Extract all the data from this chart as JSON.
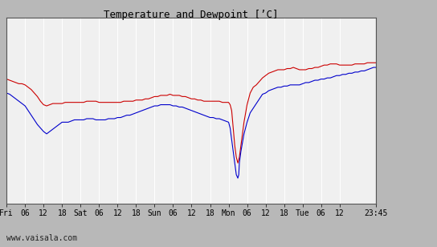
{
  "title": "Temperature and Dewpoint [’C]",
  "ylim": [
    -12,
    4
  ],
  "yticks": [
    -12,
    -10,
    -8,
    -6,
    -4,
    -2,
    0,
    2,
    4
  ],
  "watermark": "www.vaisala.com",
  "plot_bg_color": "#f0f0f0",
  "fig_bg_color": "#b8b8b8",
  "right_panel_color": "#c8c8c8",
  "grid_color": "#ffffff",
  "temp_color": "#cc0000",
  "dew_color": "#0000cc",
  "x_tick_labels": [
    "Fri",
    "06",
    "12",
    "18",
    "Sat",
    "06",
    "12",
    "18",
    "Sun",
    "06",
    "12",
    "18",
    "Mon",
    "06",
    "12",
    "18",
    "Tue",
    "06",
    "12",
    "23:45"
  ],
  "x_tick_positions": [
    0,
    6,
    12,
    18,
    24,
    30,
    36,
    42,
    48,
    54,
    60,
    66,
    72,
    78,
    84,
    90,
    96,
    102,
    108,
    119.75
  ],
  "total_hours": 119.75,
  "temp_data": [
    [
      0,
      -1.3
    ],
    [
      1,
      -1.4
    ],
    [
      2,
      -1.5
    ],
    [
      3,
      -1.6
    ],
    [
      4,
      -1.7
    ],
    [
      5,
      -1.7
    ],
    [
      6,
      -1.8
    ],
    [
      7,
      -2.0
    ],
    [
      8,
      -2.2
    ],
    [
      9,
      -2.5
    ],
    [
      10,
      -2.8
    ],
    [
      11,
      -3.2
    ],
    [
      12,
      -3.5
    ],
    [
      13,
      -3.6
    ],
    [
      14,
      -3.5
    ],
    [
      15,
      -3.4
    ],
    [
      16,
      -3.4
    ],
    [
      17,
      -3.4
    ],
    [
      18,
      -3.4
    ],
    [
      19,
      -3.3
    ],
    [
      20,
      -3.3
    ],
    [
      21,
      -3.3
    ],
    [
      22,
      -3.3
    ],
    [
      23,
      -3.3
    ],
    [
      24,
      -3.3
    ],
    [
      25,
      -3.3
    ],
    [
      26,
      -3.2
    ],
    [
      27,
      -3.2
    ],
    [
      28,
      -3.2
    ],
    [
      29,
      -3.2
    ],
    [
      30,
      -3.3
    ],
    [
      31,
      -3.3
    ],
    [
      32,
      -3.3
    ],
    [
      33,
      -3.3
    ],
    [
      34,
      -3.3
    ],
    [
      35,
      -3.3
    ],
    [
      36,
      -3.3
    ],
    [
      37,
      -3.3
    ],
    [
      38,
      -3.2
    ],
    [
      39,
      -3.2
    ],
    [
      40,
      -3.2
    ],
    [
      41,
      -3.2
    ],
    [
      42,
      -3.1
    ],
    [
      43,
      -3.1
    ],
    [
      44,
      -3.1
    ],
    [
      45,
      -3.0
    ],
    [
      46,
      -3.0
    ],
    [
      47,
      -2.9
    ],
    [
      48,
      -2.8
    ],
    [
      49,
      -2.8
    ],
    [
      50,
      -2.7
    ],
    [
      51,
      -2.7
    ],
    [
      52,
      -2.7
    ],
    [
      53,
      -2.6
    ],
    [
      54,
      -2.7
    ],
    [
      55,
      -2.7
    ],
    [
      56,
      -2.7
    ],
    [
      57,
      -2.8
    ],
    [
      58,
      -2.8
    ],
    [
      59,
      -2.9
    ],
    [
      60,
      -3.0
    ],
    [
      61,
      -3.0
    ],
    [
      62,
      -3.1
    ],
    [
      63,
      -3.1
    ],
    [
      64,
      -3.2
    ],
    [
      65,
      -3.2
    ],
    [
      66,
      -3.2
    ],
    [
      67,
      -3.2
    ],
    [
      68,
      -3.2
    ],
    [
      69,
      -3.2
    ],
    [
      70,
      -3.3
    ],
    [
      71,
      -3.3
    ],
    [
      72,
      -3.3
    ],
    [
      72.5,
      -3.5
    ],
    [
      73,
      -4.0
    ],
    [
      73.5,
      -5.5
    ],
    [
      74,
      -7.0
    ],
    [
      74.5,
      -8.0
    ],
    [
      75,
      -8.5
    ],
    [
      75.5,
      -8.0
    ],
    [
      76,
      -7.0
    ],
    [
      77,
      -5.0
    ],
    [
      78,
      -3.5
    ],
    [
      79,
      -2.5
    ],
    [
      80,
      -2.0
    ],
    [
      81,
      -1.8
    ],
    [
      82,
      -1.5
    ],
    [
      83,
      -1.2
    ],
    [
      84,
      -1.0
    ],
    [
      85,
      -0.8
    ],
    [
      86,
      -0.7
    ],
    [
      87,
      -0.6
    ],
    [
      88,
      -0.5
    ],
    [
      89,
      -0.5
    ],
    [
      90,
      -0.5
    ],
    [
      91,
      -0.4
    ],
    [
      92,
      -0.4
    ],
    [
      93,
      -0.3
    ],
    [
      94,
      -0.4
    ],
    [
      95,
      -0.5
    ],
    [
      96,
      -0.5
    ],
    [
      97,
      -0.5
    ],
    [
      98,
      -0.4
    ],
    [
      99,
      -0.4
    ],
    [
      100,
      -0.3
    ],
    [
      101,
      -0.3
    ],
    [
      102,
      -0.2
    ],
    [
      103,
      -0.1
    ],
    [
      104,
      -0.1
    ],
    [
      105,
      0.0
    ],
    [
      106,
      0.0
    ],
    [
      107,
      0.0
    ],
    [
      108,
      -0.1
    ],
    [
      109,
      -0.1
    ],
    [
      110,
      -0.1
    ],
    [
      111,
      -0.1
    ],
    [
      112,
      -0.1
    ],
    [
      113,
      0.0
    ],
    [
      114,
      0.0
    ],
    [
      115,
      0.0
    ],
    [
      116,
      0.0
    ],
    [
      117,
      0.1
    ],
    [
      118,
      0.1
    ],
    [
      119,
      0.1
    ],
    [
      119.75,
      0.1
    ]
  ],
  "dew_data": [
    [
      0,
      -2.5
    ],
    [
      1,
      -2.6
    ],
    [
      2,
      -2.8
    ],
    [
      3,
      -3.0
    ],
    [
      4,
      -3.2
    ],
    [
      5,
      -3.4
    ],
    [
      6,
      -3.6
    ],
    [
      7,
      -4.0
    ],
    [
      8,
      -4.4
    ],
    [
      9,
      -4.8
    ],
    [
      10,
      -5.2
    ],
    [
      11,
      -5.5
    ],
    [
      12,
      -5.8
    ],
    [
      13,
      -6.0
    ],
    [
      14,
      -5.8
    ],
    [
      15,
      -5.6
    ],
    [
      16,
      -5.4
    ],
    [
      17,
      -5.2
    ],
    [
      18,
      -5.0
    ],
    [
      19,
      -5.0
    ],
    [
      20,
      -5.0
    ],
    [
      21,
      -4.9
    ],
    [
      22,
      -4.8
    ],
    [
      23,
      -4.8
    ],
    [
      24,
      -4.8
    ],
    [
      25,
      -4.8
    ],
    [
      26,
      -4.7
    ],
    [
      27,
      -4.7
    ],
    [
      28,
      -4.7
    ],
    [
      29,
      -4.8
    ],
    [
      30,
      -4.8
    ],
    [
      31,
      -4.8
    ],
    [
      32,
      -4.8
    ],
    [
      33,
      -4.7
    ],
    [
      34,
      -4.7
    ],
    [
      35,
      -4.7
    ],
    [
      36,
      -4.6
    ],
    [
      37,
      -4.6
    ],
    [
      38,
      -4.5
    ],
    [
      39,
      -4.4
    ],
    [
      40,
      -4.4
    ],
    [
      41,
      -4.3
    ],
    [
      42,
      -4.2
    ],
    [
      43,
      -4.1
    ],
    [
      44,
      -4.0
    ],
    [
      45,
      -3.9
    ],
    [
      46,
      -3.8
    ],
    [
      47,
      -3.7
    ],
    [
      48,
      -3.6
    ],
    [
      49,
      -3.6
    ],
    [
      50,
      -3.5
    ],
    [
      51,
      -3.5
    ],
    [
      52,
      -3.5
    ],
    [
      53,
      -3.5
    ],
    [
      54,
      -3.6
    ],
    [
      55,
      -3.6
    ],
    [
      56,
      -3.7
    ],
    [
      57,
      -3.7
    ],
    [
      58,
      -3.8
    ],
    [
      59,
      -3.9
    ],
    [
      60,
      -4.0
    ],
    [
      61,
      -4.1
    ],
    [
      62,
      -4.2
    ],
    [
      63,
      -4.3
    ],
    [
      64,
      -4.4
    ],
    [
      65,
      -4.5
    ],
    [
      66,
      -4.6
    ],
    [
      67,
      -4.6
    ],
    [
      68,
      -4.7
    ],
    [
      69,
      -4.7
    ],
    [
      70,
      -4.8
    ],
    [
      71,
      -4.9
    ],
    [
      72,
      -5.0
    ],
    [
      72.5,
      -5.5
    ],
    [
      73,
      -6.5
    ],
    [
      73.5,
      -7.5
    ],
    [
      74,
      -8.5
    ],
    [
      74.5,
      -9.5
    ],
    [
      75,
      -9.8
    ],
    [
      75.3,
      -9.5
    ],
    [
      75.5,
      -8.5
    ],
    [
      76,
      -7.5
    ],
    [
      77,
      -6.0
    ],
    [
      78,
      -5.0
    ],
    [
      79,
      -4.2
    ],
    [
      80,
      -3.8
    ],
    [
      81,
      -3.4
    ],
    [
      82,
      -3.0
    ],
    [
      83,
      -2.6
    ],
    [
      84,
      -2.5
    ],
    [
      85,
      -2.3
    ],
    [
      86,
      -2.2
    ],
    [
      87,
      -2.1
    ],
    [
      88,
      -2.0
    ],
    [
      89,
      -2.0
    ],
    [
      90,
      -1.9
    ],
    [
      91,
      -1.9
    ],
    [
      92,
      -1.8
    ],
    [
      93,
      -1.8
    ],
    [
      94,
      -1.8
    ],
    [
      95,
      -1.8
    ],
    [
      96,
      -1.7
    ],
    [
      97,
      -1.6
    ],
    [
      98,
      -1.6
    ],
    [
      99,
      -1.5
    ],
    [
      100,
      -1.4
    ],
    [
      101,
      -1.4
    ],
    [
      102,
      -1.3
    ],
    [
      103,
      -1.3
    ],
    [
      104,
      -1.2
    ],
    [
      105,
      -1.2
    ],
    [
      106,
      -1.1
    ],
    [
      107,
      -1.0
    ],
    [
      108,
      -1.0
    ],
    [
      109,
      -0.9
    ],
    [
      110,
      -0.9
    ],
    [
      111,
      -0.8
    ],
    [
      112,
      -0.8
    ],
    [
      113,
      -0.7
    ],
    [
      114,
      -0.7
    ],
    [
      115,
      -0.6
    ],
    [
      116,
      -0.6
    ],
    [
      117,
      -0.5
    ],
    [
      118,
      -0.4
    ],
    [
      119,
      -0.3
    ],
    [
      119.75,
      -0.3
    ]
  ]
}
